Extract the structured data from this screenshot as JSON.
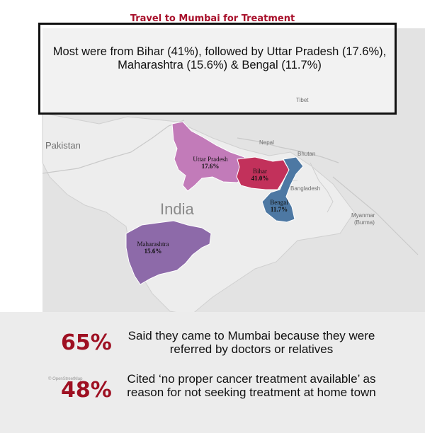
{
  "title": "Travel to Mumbai for Treatment",
  "callout": "Most were from Bihar (41%), followed by Uttar Pradesh (17.6%), Maharashtra (15.6%) & Bengal (11.7%)",
  "map": {
    "countries": [
      "Pakistan",
      "India",
      "Nepal",
      "Bhutan",
      "Bangladesh",
      "Myanmar",
      "(Burma)",
      "Tibet"
    ],
    "states": [
      {
        "name": "Uttar Pradesh",
        "value": "17.6%",
        "color": "#c27bb9"
      },
      {
        "name": "Bihar",
        "value": "41.0%",
        "color": "#c2315b"
      },
      {
        "name": "Bengal",
        "value": "11.7%",
        "color": "#4d78a3"
      },
      {
        "name": "Maharashtra",
        "value": "15.6%",
        "color": "#8d6aa9"
      }
    ],
    "attribution": "© OpenStreetMap"
  },
  "stats": [
    {
      "value": "65%",
      "text": "Said they came to Mumbai because they were referred by doctors or relatives"
    },
    {
      "value": "48%",
      "text": "Cited ‘no proper cancer treatment available’ as reason for not seeking treatment at home town"
    }
  ]
}
